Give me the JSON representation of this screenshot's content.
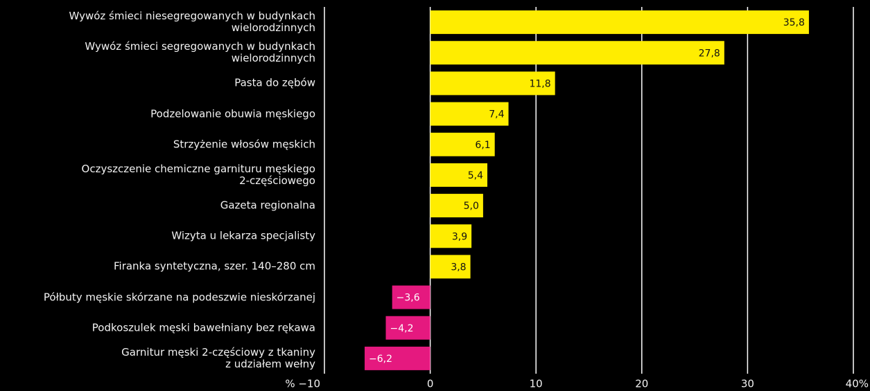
{
  "chart_data": {
    "type": "hbar",
    "categories": [
      "Wywóz śmieci niesegregowanych w budynkach\nwielorodzinnych",
      "Wywóz śmieci segregowanych w budynkach\nwielorodzinnych",
      "Pasta do zębów",
      "Podzelowanie obuwia męskiego",
      "Strzyżenie włosów męskich",
      "Oczyszczenie chemiczne garnituru męskiego\n2-częściowego",
      "Gazeta regionalna",
      "Wizyta u lekarza specjalisty",
      "Firanka syntetyczna, szer. 140–280 cm",
      "Półbuty męskie skórzane na podeszwie nieskórzanej",
      "Podkoszulek męski bawełniany bez rękawa",
      "Garnitur męski 2-częściowy z tkaniny\nz udziałem wełny"
    ],
    "values": [
      35.8,
      27.8,
      11.8,
      7.4,
      6.1,
      5.4,
      5.0,
      3.9,
      3.8,
      -3.6,
      -4.2,
      -6.2
    ],
    "value_labels": [
      "35,8",
      "27,8",
      "11,8",
      "7,4",
      "6,1",
      "5,4",
      "5,0",
      "3,9",
      "3,8",
      "−3,6",
      "−4,2",
      "−6,2"
    ],
    "color": "#ffed00",
    "negative_color": "#e5197f",
    "xlim": [
      -10,
      40
    ],
    "xticks": [
      {
        "value": -10,
        "label": "% −10"
      },
      0,
      10,
      20,
      30,
      {
        "value": 40,
        "label": "40%"
      }
    ],
    "grid": true
  }
}
